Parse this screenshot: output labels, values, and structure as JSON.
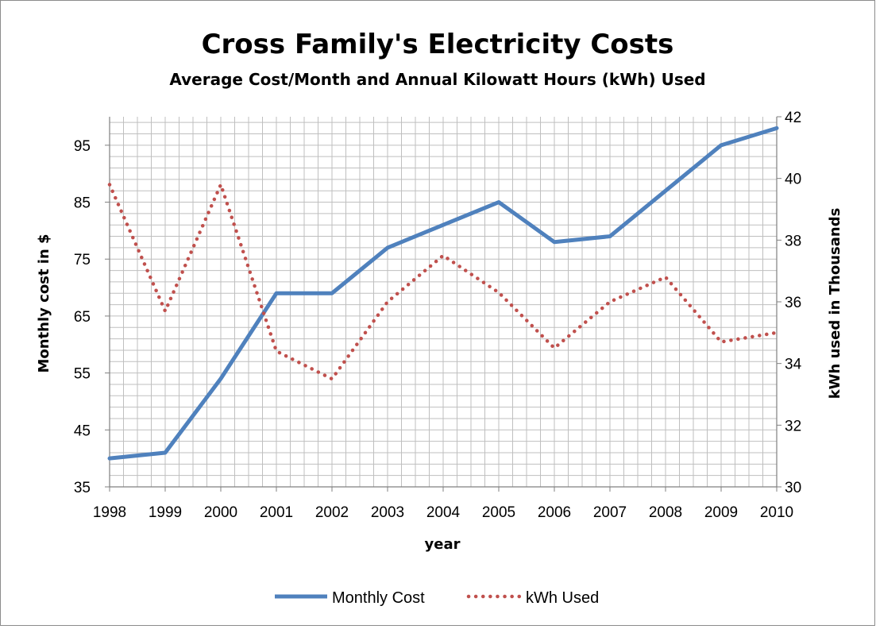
{
  "chart_data": {
    "type": "line",
    "title": "Cross Family's Electricity Costs",
    "subtitle": "Average Cost/Month and Annual Kilowatt Hours (kWh) Used",
    "xlabel": "year",
    "ylabel": "Monthly cost in $",
    "y2label": "kWh used in Thousands",
    "x": [
      "1998",
      "1999",
      "2000",
      "2001",
      "2002",
      "2003",
      "2004",
      "2005",
      "2006",
      "2007",
      "2008",
      "2009",
      "2010"
    ],
    "ylim": [
      35,
      100
    ],
    "yticks": [
      35,
      45,
      55,
      65,
      75,
      85,
      95
    ],
    "y2lim": [
      30,
      42
    ],
    "y2ticks": [
      30,
      32,
      34,
      36,
      38,
      40,
      42
    ],
    "grid": true,
    "legend": "bottom",
    "series": [
      {
        "name": "Monthly Cost",
        "axis": "left",
        "color": "#4F81BD",
        "style": "solid",
        "values": [
          40,
          41,
          54,
          69,
          69,
          77,
          81,
          85,
          78,
          79,
          87,
          95,
          98
        ]
      },
      {
        "name": "kWh Used",
        "axis": "right",
        "color": "#C0504D",
        "style": "dotted",
        "values": [
          39.8,
          35.7,
          39.8,
          34.4,
          33.5,
          36.0,
          37.5,
          36.3,
          34.5,
          36.0,
          36.8,
          34.7,
          35.0
        ]
      }
    ]
  }
}
